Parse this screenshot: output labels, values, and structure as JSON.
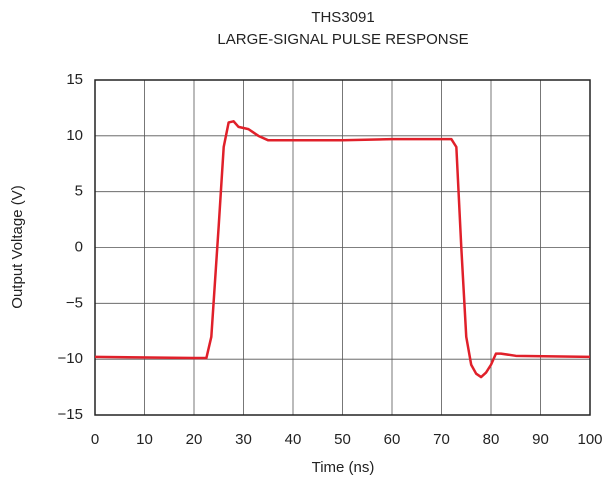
{
  "chart_data": {
    "type": "line",
    "title": [
      "THS3091",
      "LARGE-SIGNAL PULSE RESPONSE"
    ],
    "x_label": "Time (ns)",
    "y_label": "Output Voltage (V)",
    "x": [
      0,
      20,
      22.5,
      23.5,
      25,
      26,
      27,
      28,
      29,
      31,
      33,
      35,
      40,
      50,
      60,
      70,
      72,
      73,
      74,
      75,
      76,
      77,
      78,
      79,
      80,
      81,
      82,
      85,
      100
    ],
    "series": [
      {
        "name": "Output",
        "color": "#e0202a",
        "values": [
          -9.8,
          -9.9,
          -9.9,
          -8,
          2,
          9,
          11.2,
          11.3,
          10.8,
          10.6,
          10,
          9.6,
          9.6,
          9.6,
          9.7,
          9.7,
          9.7,
          9,
          0,
          -8,
          -10.5,
          -11.3,
          -11.6,
          -11.2,
          -10.5,
          -9.5,
          -9.5,
          -9.7,
          -9.8
        ]
      }
    ],
    "xlim": [
      0,
      100
    ],
    "xticks": [
      0,
      10,
      20,
      30,
      40,
      50,
      60,
      70,
      80,
      90,
      100
    ],
    "ylim": [
      -15,
      15
    ],
    "yticks": [
      {
        "value": -15,
        "label": "−15"
      },
      {
        "value": -10,
        "label": "−10"
      },
      {
        "value": -5,
        "label": "−5"
      },
      0,
      5,
      10,
      15
    ],
    "grid": true
  }
}
